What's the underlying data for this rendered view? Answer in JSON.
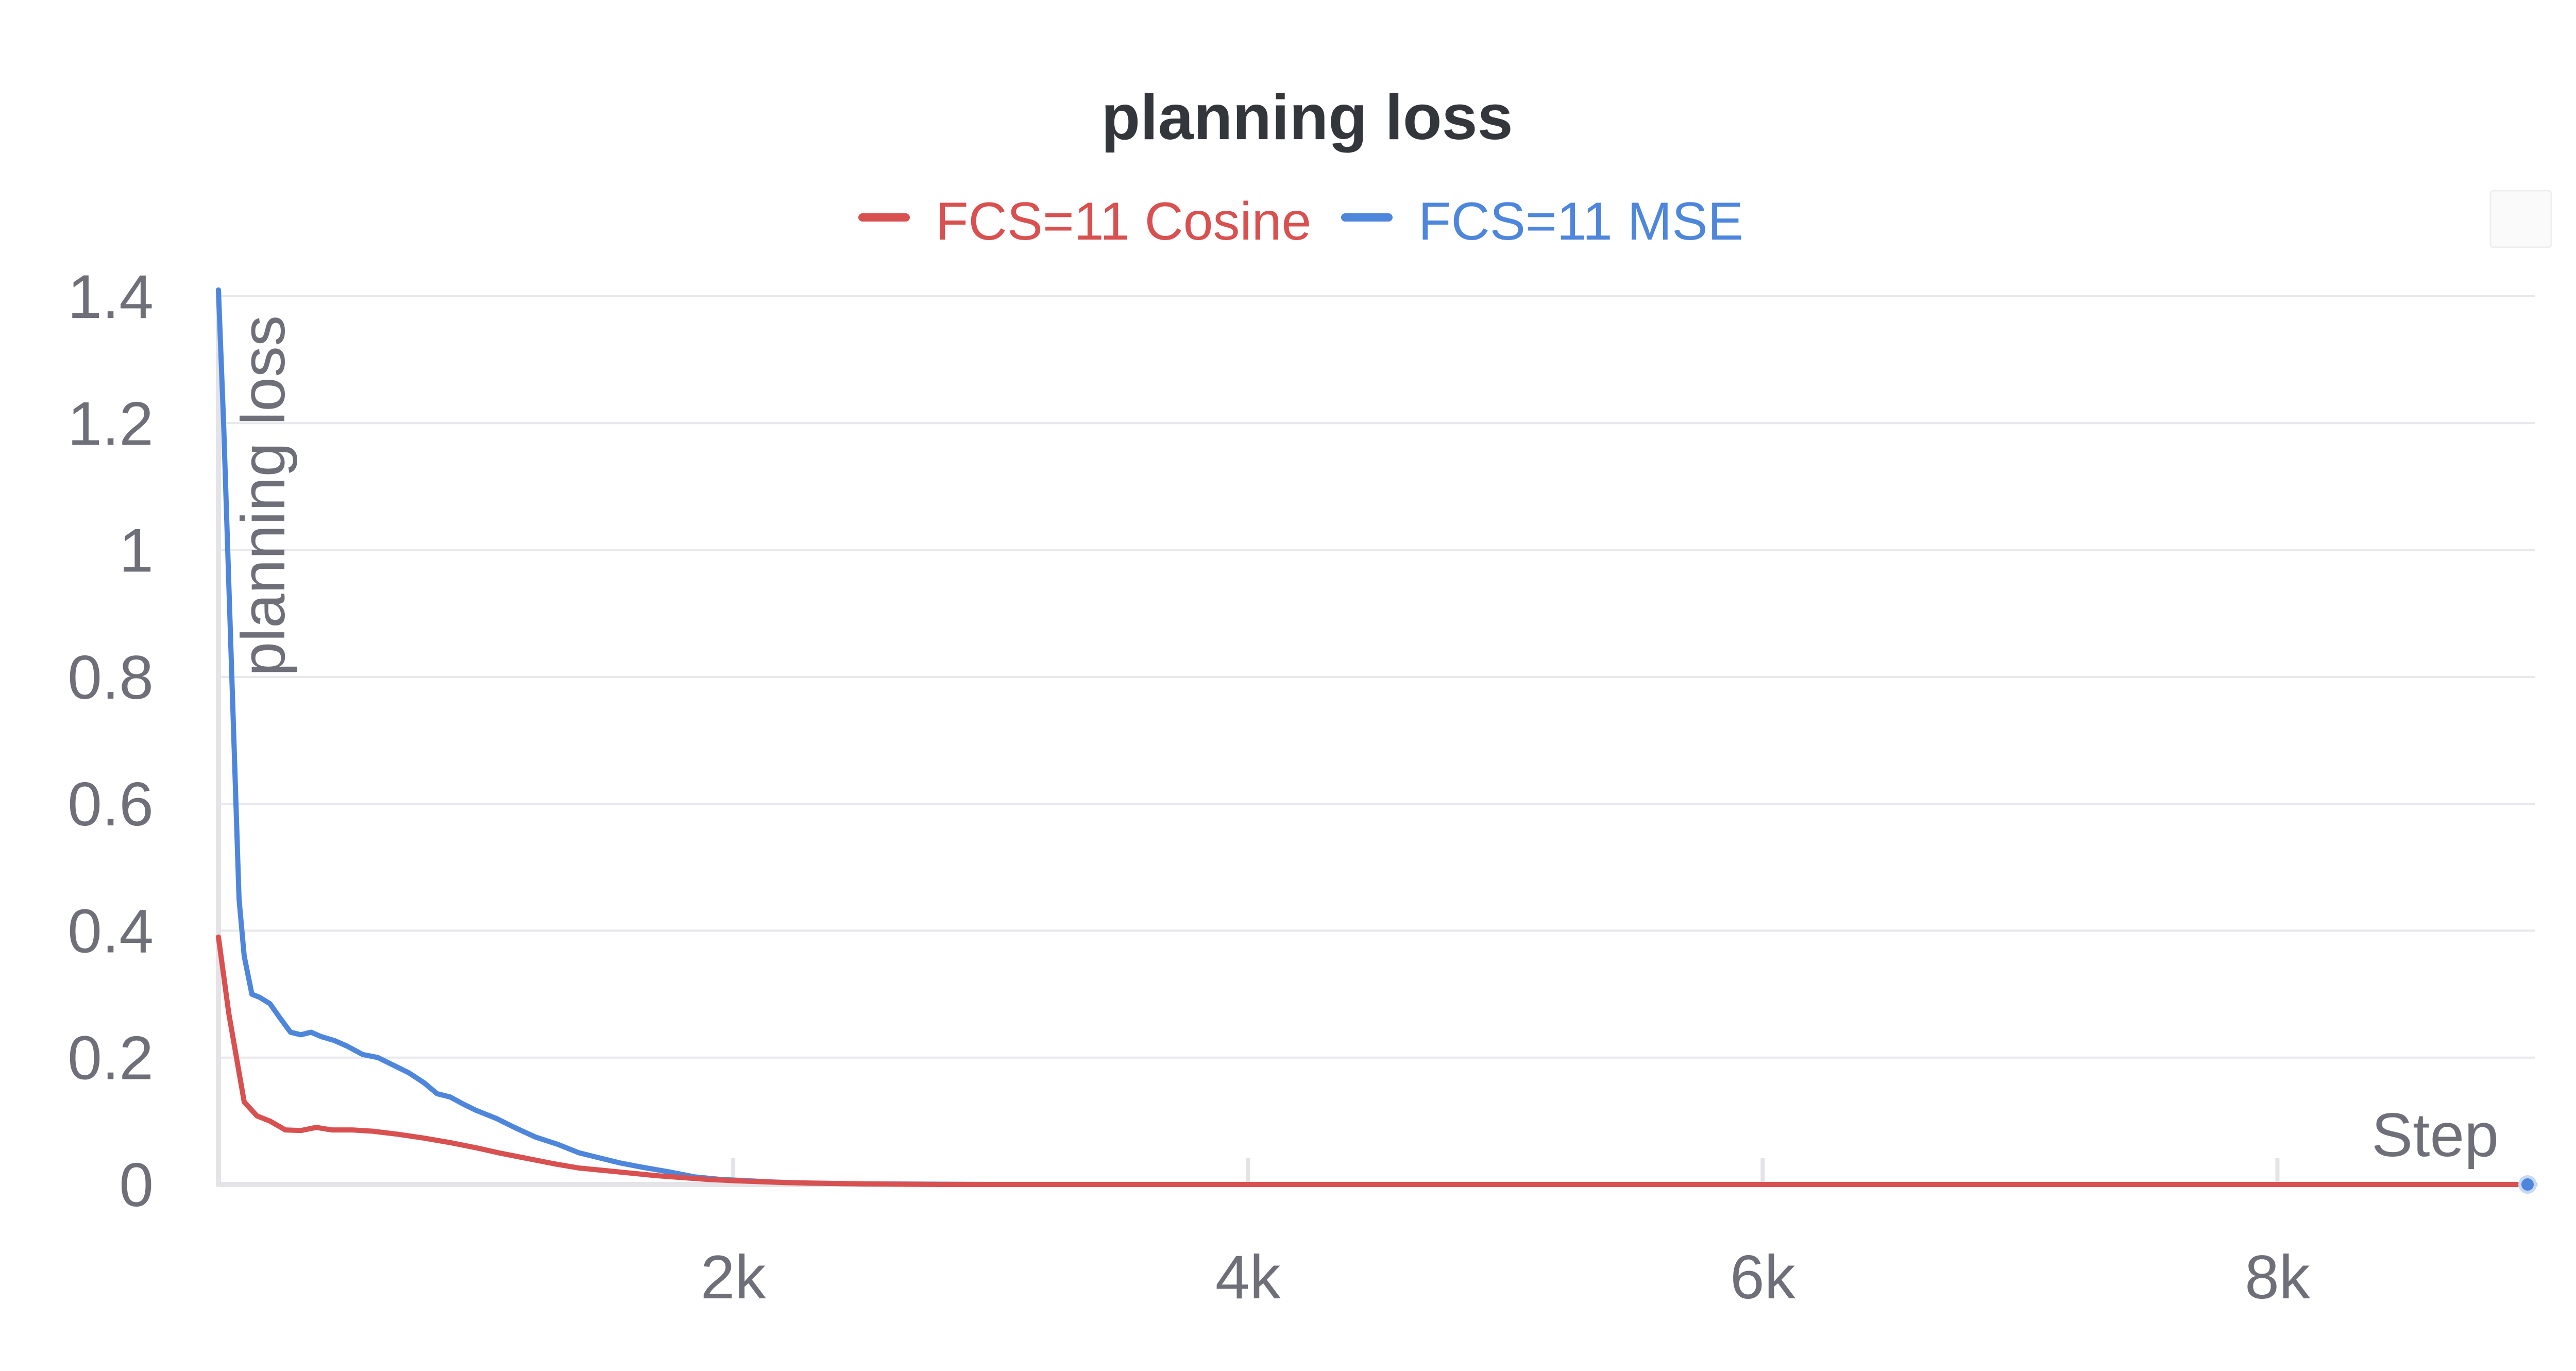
{
  "chart_data": {
    "type": "line",
    "title": "planning loss",
    "xlabel": "Step",
    "ylabel": "planning loss",
    "xlim": [
      0,
      9000
    ],
    "ylim": [
      0,
      1.4
    ],
    "x_ticks": [
      2000,
      4000,
      6000,
      8000
    ],
    "x_tick_labels": [
      "2k",
      "4k",
      "6k",
      "8k"
    ],
    "y_ticks": [
      0,
      0.2,
      0.4,
      0.6,
      0.8,
      1,
      1.2,
      1.4
    ],
    "y_tick_labels": [
      "0",
      "0.2",
      "0.4",
      "0.6",
      "0.8",
      "1",
      "1.2",
      "1.4"
    ],
    "grid": true,
    "legend_position": "top-center",
    "series": [
      {
        "name": "FCS=11 Cosine",
        "color": "#d95050",
        "points": [
          [
            0,
            0.39
          ],
          [
            20,
            0.33
          ],
          [
            40,
            0.27
          ],
          [
            70,
            0.2
          ],
          [
            100,
            0.13
          ],
          [
            150,
            0.108
          ],
          [
            200,
            0.1
          ],
          [
            260,
            0.086
          ],
          [
            320,
            0.085
          ],
          [
            380,
            0.09
          ],
          [
            440,
            0.086
          ],
          [
            520,
            0.086
          ],
          [
            600,
            0.084
          ],
          [
            700,
            0.079
          ],
          [
            800,
            0.073
          ],
          [
            900,
            0.066
          ],
          [
            1000,
            0.058
          ],
          [
            1100,
            0.049
          ],
          [
            1200,
            0.041
          ],
          [
            1300,
            0.033
          ],
          [
            1400,
            0.026
          ],
          [
            1500,
            0.022
          ],
          [
            1600,
            0.018
          ],
          [
            1700,
            0.014
          ],
          [
            1800,
            0.011
          ],
          [
            1900,
            0.008
          ],
          [
            2000,
            0.006
          ],
          [
            2200,
            0.003
          ],
          [
            2500,
            0.001
          ],
          [
            2800,
            0
          ],
          [
            3500,
            0
          ],
          [
            5000,
            0
          ],
          [
            7000,
            0
          ],
          [
            9000,
            0
          ]
        ]
      },
      {
        "name": "FCS=11 MSE",
        "color": "#4e86dc",
        "points": [
          [
            0,
            1.41
          ],
          [
            20,
            1.2
          ],
          [
            40,
            0.95
          ],
          [
            60,
            0.7
          ],
          [
            80,
            0.45
          ],
          [
            100,
            0.36
          ],
          [
            130,
            0.3
          ],
          [
            160,
            0.295
          ],
          [
            200,
            0.285
          ],
          [
            240,
            0.262
          ],
          [
            280,
            0.24
          ],
          [
            320,
            0.236
          ],
          [
            360,
            0.24
          ],
          [
            400,
            0.233
          ],
          [
            450,
            0.227
          ],
          [
            500,
            0.218
          ],
          [
            560,
            0.205
          ],
          [
            620,
            0.2
          ],
          [
            680,
            0.188
          ],
          [
            740,
            0.176
          ],
          [
            800,
            0.16
          ],
          [
            850,
            0.143
          ],
          [
            900,
            0.138
          ],
          [
            950,
            0.127
          ],
          [
            1000,
            0.117
          ],
          [
            1080,
            0.104
          ],
          [
            1150,
            0.09
          ],
          [
            1230,
            0.075
          ],
          [
            1320,
            0.063
          ],
          [
            1400,
            0.05
          ],
          [
            1480,
            0.042
          ],
          [
            1560,
            0.034
          ],
          [
            1650,
            0.027
          ],
          [
            1750,
            0.02
          ],
          [
            1850,
            0.012
          ],
          [
            1950,
            0.008
          ],
          [
            2050,
            0.006
          ],
          [
            2150,
            0.004
          ],
          [
            2300,
            0.002
          ],
          [
            2500,
            0.001
          ],
          [
            3000,
            0
          ],
          [
            5000,
            0
          ],
          [
            7000,
            0
          ],
          [
            9000,
            0
          ]
        ]
      }
    ]
  }
}
